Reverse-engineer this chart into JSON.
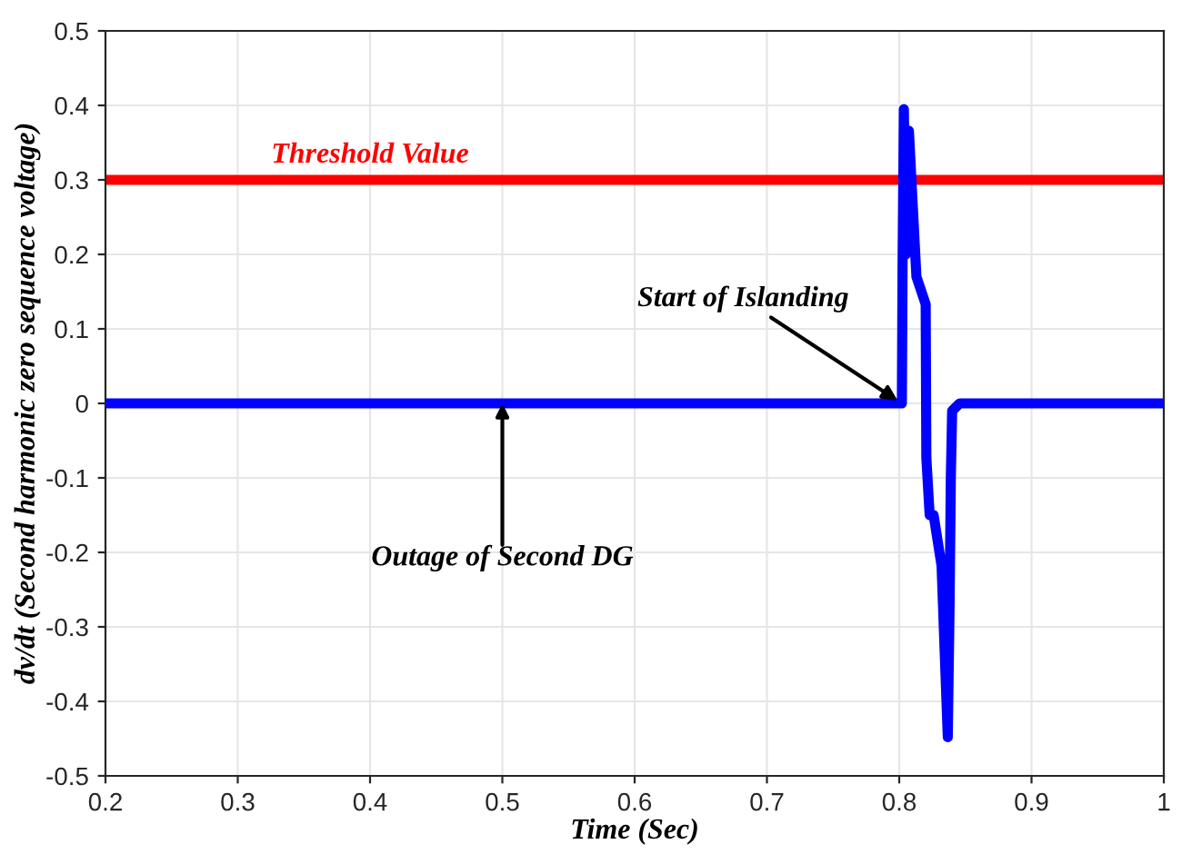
{
  "chart_data": {
    "type": "line",
    "xlabel": "Time (Sec)",
    "ylabel": "dv/dt (Second harmonic zero sequence voltage)",
    "x": [
      0.2,
      0.8,
      0.802,
      0.8025,
      0.8035,
      0.805,
      0.8073,
      0.813,
      0.82,
      0.8205,
      0.823,
      0.826,
      0.832,
      0.8367,
      0.838,
      0.839,
      0.84,
      0.8457,
      0.85,
      1.0
    ],
    "series": [
      {
        "color": "#0000ff",
        "values": [
          0,
          0,
          0,
          0.18,
          0.395,
          0.2,
          0.366,
          0.17,
          0.133,
          -0.073,
          -0.15,
          -0.15,
          -0.218,
          -0.448,
          -0.28,
          -0.1,
          -0.01,
          0,
          0,
          0
        ]
      }
    ],
    "xlim": [
      0.2,
      1.0
    ],
    "xticks": [
      0.2,
      0.3,
      0.4,
      0.5,
      0.6,
      0.7,
      0.8,
      0.9,
      {
        "value": 1.0,
        "label": "1"
      }
    ],
    "ylim": [
      -0.5,
      0.5
    ],
    "yticks": [
      -0.5,
      -0.4,
      -0.3,
      -0.2,
      -0.1,
      0,
      0.1,
      0.2,
      0.3,
      0.4,
      0.5
    ],
    "ref_lines": [
      {
        "axis": "y",
        "value": 0.3,
        "label": "Threshold Value",
        "color": "#ff0000"
      }
    ],
    "annotations": [
      {
        "text": "Start of Islanding",
        "x": 0.802,
        "y": 0
      },
      {
        "text": "Outage of Second DG",
        "x": 0.5,
        "y": 0
      }
    ],
    "grid": true,
    "line_style": "solid",
    "marker": "none"
  }
}
